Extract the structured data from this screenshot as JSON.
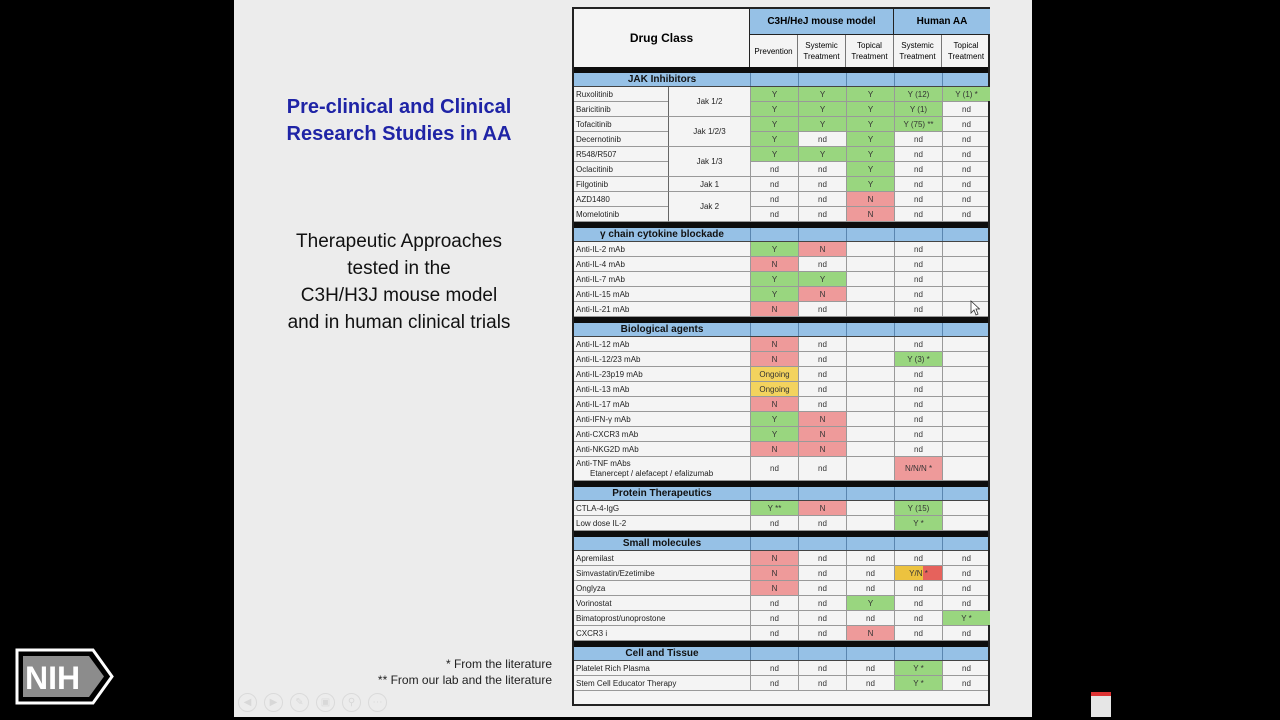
{
  "title_lines": [
    "Pre-clinical and Clinical",
    "Research Studies in AA"
  ],
  "subtitle_lines": [
    "Therapeutic Approaches",
    "tested in the",
    "C3H/H3J mouse model",
    "and in human clinical trials"
  ],
  "footnotes": [
    "* From the literature",
    "** From our lab and the literature"
  ],
  "logo": {
    "text": "NIH"
  },
  "colors": {
    "title": "#1f24a6",
    "header_blue": "#96c1e6",
    "yes_green": "#99d67f",
    "no_red": "#ee9a9a",
    "ongoing_yellow": "#f3d35e"
  },
  "table": {
    "drug_class_header": "Drug Class",
    "group_mouse": "C3H/HeJ mouse model",
    "group_human": "Human AA",
    "subheaders": [
      "Prevention",
      "Systemic Treatment",
      "Topical Treatment",
      "Systemic Treatment",
      "Topical Treatment"
    ],
    "jak_groups": [
      {
        "label": "Jak 1/2",
        "start": 0,
        "span": 2
      },
      {
        "label": "Jak 1/2/3",
        "start": 2,
        "span": 2
      },
      {
        "label": "Jak 1/3",
        "start": 4,
        "span": 2
      },
      {
        "label": "Jak 1",
        "start": 6,
        "span": 1
      },
      {
        "label": "Jak 2",
        "start": 7,
        "span": 2
      }
    ],
    "sections": [
      {
        "title": "JAK Inhibitors",
        "rows": [
          {
            "name": "Ruxolitinib",
            "cells": [
              "Y",
              "Y",
              "Y",
              "Y (12)",
              "Y (1) *"
            ]
          },
          {
            "name": "Baricitinib",
            "cells": [
              "Y",
              "Y",
              "Y",
              "Y (1)",
              "nd"
            ]
          },
          {
            "name": "Tofacitinib",
            "cells": [
              "Y",
              "Y",
              "Y",
              "Y (75) **",
              "nd"
            ]
          },
          {
            "name": "Decernotinib",
            "cells": [
              "Y",
              "nd",
              "Y",
              "nd",
              "nd"
            ]
          },
          {
            "name": "R548/R507",
            "cells": [
              "Y",
              "Y",
              "Y",
              "nd",
              "nd"
            ]
          },
          {
            "name": "Oclacitinib",
            "cells": [
              "nd",
              "nd",
              "Y",
              "nd",
              "nd"
            ]
          },
          {
            "name": "Filgotinib",
            "cells": [
              "nd",
              "nd",
              "Y",
              "nd",
              "nd"
            ]
          },
          {
            "name": "AZD1480",
            "cells": [
              "nd",
              "nd",
              "N",
              "nd",
              "nd"
            ]
          },
          {
            "name": "Momelotinib",
            "cells": [
              "nd",
              "nd",
              "N",
              "nd",
              "nd"
            ]
          }
        ]
      },
      {
        "title": "γ chain cytokine blockade",
        "rows": [
          {
            "name": "Anti-IL-2  mAb",
            "cells": [
              "Y",
              "N",
              "",
              "nd",
              ""
            ]
          },
          {
            "name": "Anti-IL-4  mAb",
            "cells": [
              "N",
              "nd",
              "",
              "nd",
              ""
            ]
          },
          {
            "name": "Anti-IL-7  mAb",
            "cells": [
              "Y",
              "Y",
              "",
              "nd",
              ""
            ]
          },
          {
            "name": "Anti-IL-15 mAb",
            "cells": [
              "Y",
              "N",
              "",
              "nd",
              ""
            ]
          },
          {
            "name": "Anti-IL-21 mAb",
            "cells": [
              "N",
              "nd",
              "",
              "nd",
              ""
            ]
          }
        ]
      },
      {
        "title": "Biological agents",
        "rows": [
          {
            "name": "Anti-IL-12 mAb",
            "cells": [
              "N",
              "nd",
              "",
              "nd",
              ""
            ]
          },
          {
            "name": "Anti-IL-12/23 mAb",
            "cells": [
              "N",
              "nd",
              "",
              "Y (3) *",
              ""
            ]
          },
          {
            "name": "Anti-IL-23p19 mAb",
            "cells": [
              "Ongoing",
              "nd",
              "",
              "nd",
              ""
            ]
          },
          {
            "name": "Anti-IL-13 mAb",
            "cells": [
              "Ongoing",
              "nd",
              "",
              "nd",
              ""
            ]
          },
          {
            "name": "Anti-IL-17 mAb",
            "cells": [
              "N",
              "nd",
              "",
              "nd",
              ""
            ]
          },
          {
            "name": "Anti-IFN-γ mAb",
            "cells": [
              "Y",
              "N",
              "",
              "nd",
              ""
            ]
          },
          {
            "name": "Anti-CXCR3 mAb",
            "cells": [
              "Y",
              "N",
              "",
              "nd",
              ""
            ]
          },
          {
            "name": "Anti-NKG2D mAb",
            "cells": [
              "N",
              "N",
              "",
              "nd",
              ""
            ]
          },
          {
            "name": "Anti-TNF mAbs",
            "name2": "Etanercept / alefacept / efalizumab",
            "cells": [
              "nd",
              "nd",
              "",
              "N/N/N *",
              ""
            ]
          }
        ]
      },
      {
        "title": "Protein Therapeutics",
        "rows": [
          {
            "name": "CTLA-4-IgG",
            "cells": [
              "Y **",
              "N",
              "",
              "Y (15)",
              ""
            ]
          },
          {
            "name": "Low dose IL-2",
            "cells": [
              "nd",
              "nd",
              "",
              "Y *",
              ""
            ]
          }
        ]
      },
      {
        "title": "Small molecules",
        "rows": [
          {
            "name": "Apremilast",
            "cells": [
              "N",
              "nd",
              "nd",
              "nd",
              "nd"
            ]
          },
          {
            "name": "Simvastatin/Ezetimibe",
            "cells": [
              "N",
              "nd",
              "nd",
              "Y/N *",
              "nd"
            ]
          },
          {
            "name": "Onglyza",
            "cells": [
              "N",
              "nd",
              "nd",
              "nd",
              "nd"
            ]
          },
          {
            "name": "Vorinostat",
            "cells": [
              "nd",
              "nd",
              "Y",
              "nd",
              "nd"
            ]
          },
          {
            "name": "Bimatoprost/unoprostone",
            "cells": [
              "nd",
              "nd",
              "nd",
              "nd",
              "Y *"
            ]
          },
          {
            "name": "CXCR3 i",
            "cells": [
              "nd",
              "nd",
              "N",
              "nd",
              "nd"
            ]
          }
        ]
      },
      {
        "title": "Cell and Tissue",
        "rows": [
          {
            "name": "Platelet Rich Plasma",
            "cells": [
              "nd",
              "nd",
              "nd",
              "Y *",
              "nd"
            ]
          },
          {
            "name": "Stem Cell Educator Therapy",
            "cells": [
              "nd",
              "nd",
              "nd",
              "Y *",
              "nd"
            ]
          }
        ]
      }
    ]
  }
}
